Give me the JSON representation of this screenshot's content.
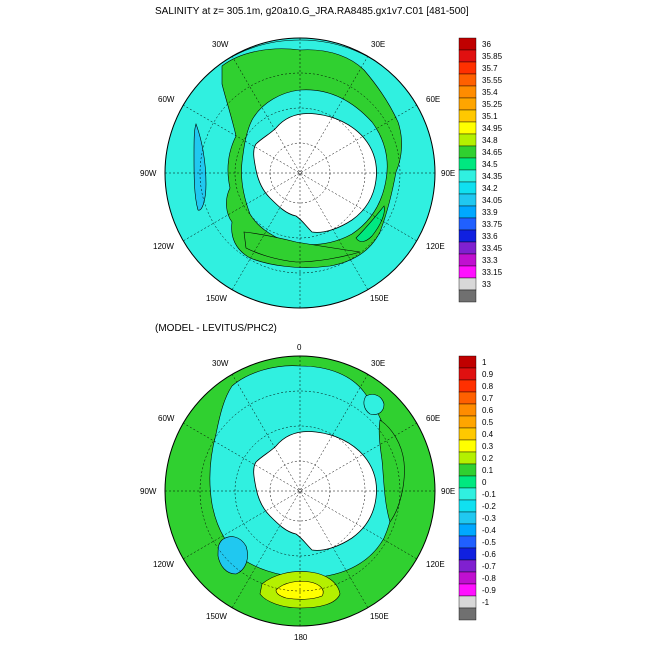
{
  "panels": [
    {
      "id": "salinity",
      "title": "SALINITY at z= 305.1m, g20a10.G_JRA.RA8485.gx1v7.C01 [481-500]",
      "lon_labels": [
        "30W",
        "30E",
        "60W",
        "60E",
        "90W",
        "90E",
        "120W",
        "120E",
        "150W",
        "150E"
      ],
      "colorbar_labels": [
        "36",
        "35.85",
        "35.7",
        "35.55",
        "35.4",
        "35.25",
        "35.1",
        "34.95",
        "34.8",
        "34.65",
        "34.5",
        "34.35",
        "34.2",
        "34.05",
        "33.9",
        "33.75",
        "33.6",
        "33.45",
        "33.3",
        "33.15",
        "33"
      ],
      "colorbar_colors": [
        "#c00000",
        "#e01010",
        "#ff3000",
        "#ff6000",
        "#ff8c00",
        "#ffa500",
        "#ffc800",
        "#ffff00",
        "#b4f000",
        "#30d030",
        "#00e880",
        "#30f0e0",
        "#10e0f0",
        "#20c8f0",
        "#00a8ff",
        "#2060ff",
        "#1020e0",
        "#8020d0",
        "#c010d0",
        "#ff10ff",
        "#d8d8d8",
        "#707070"
      ]
    },
    {
      "id": "difference",
      "title": "(MODEL - LEVITUS/PHC2)",
      "lon_labels": [
        "0",
        "30W",
        "30E",
        "60W",
        "60E",
        "90W",
        "90E",
        "120W",
        "120E",
        "150W",
        "150E",
        "180"
      ],
      "colorbar_labels": [
        "1",
        "0.9",
        "0.8",
        "0.7",
        "0.6",
        "0.5",
        "0.4",
        "0.3",
        "0.2",
        "0.1",
        "0",
        "-0.1",
        "-0.2",
        "-0.3",
        "-0.4",
        "-0.5",
        "-0.6",
        "-0.7",
        "-0.8",
        "-0.9",
        "-1"
      ],
      "colorbar_colors": [
        "#c00000",
        "#e01010",
        "#ff3000",
        "#ff6000",
        "#ff8c00",
        "#ffa500",
        "#ffc800",
        "#ffff00",
        "#b4f000",
        "#30d030",
        "#00e880",
        "#30f0e0",
        "#10e0f0",
        "#20c8f0",
        "#00a8ff",
        "#2060ff",
        "#1020e0",
        "#8020d0",
        "#c010d0",
        "#ff10ff",
        "#d8d8d8",
        "#707070"
      ]
    }
  ]
}
